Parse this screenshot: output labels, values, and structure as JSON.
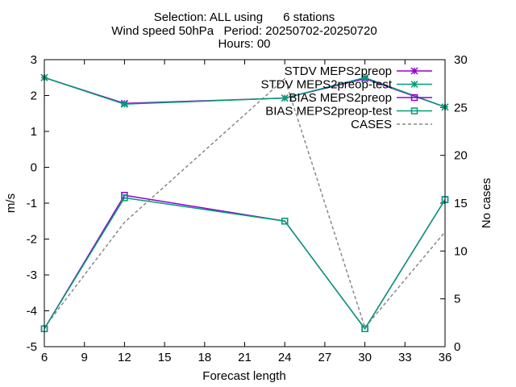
{
  "chart_data": {
    "type": "line",
    "title_lines": [
      "Selection: ALL using      6 stations",
      "Wind speed 50hPa   Period: 20250702-20250720",
      "Hours: 00"
    ],
    "xlabel": "Forecast length",
    "ylabel": "m/s",
    "y2label": "No cases",
    "xlim": [
      6,
      36
    ],
    "ylim": [
      -5,
      3
    ],
    "y2lim": [
      0,
      30
    ],
    "x_ticks": [
      6,
      9,
      12,
      15,
      18,
      21,
      24,
      27,
      30,
      33,
      36
    ],
    "y_ticks": [
      -5,
      -4,
      -3,
      -2,
      -1,
      0,
      1,
      2,
      3
    ],
    "y2_ticks": [
      0,
      5,
      10,
      15,
      20,
      25,
      30
    ],
    "grid": false,
    "legend_position": "top-right",
    "x": [
      6,
      12,
      24,
      30,
      36
    ],
    "series": [
      {
        "name": "STDV MEPS2preop",
        "axis": "y",
        "color": "#9400d3",
        "marker": "asterisk",
        "dash": "solid",
        "values": [
          2.5,
          1.78,
          1.93,
          2.47,
          1.68
        ]
      },
      {
        "name": "STDV MEPS2preop-test",
        "axis": "y",
        "color": "#009e73",
        "marker": "asterisk",
        "dash": "solid",
        "values": [
          2.5,
          1.76,
          1.93,
          2.5,
          1.68
        ]
      },
      {
        "name": "BIAS MEPS2preop",
        "axis": "y",
        "color": "#9400d3",
        "marker": "square",
        "dash": "solid",
        "values": [
          -4.5,
          -0.78,
          -1.5,
          -4.5,
          -0.9
        ]
      },
      {
        "name": "BIAS MEPS2preop-test",
        "axis": "y",
        "color": "#009e73",
        "marker": "square",
        "dash": "solid",
        "values": [
          -4.5,
          -0.85,
          -1.5,
          -4.5,
          -0.9
        ]
      },
      {
        "name": "CASES",
        "axis": "y2",
        "color": "#888888",
        "marker": "none",
        "dash": "dashed",
        "values": [
          2,
          13,
          28,
          2,
          12
        ]
      }
    ]
  }
}
